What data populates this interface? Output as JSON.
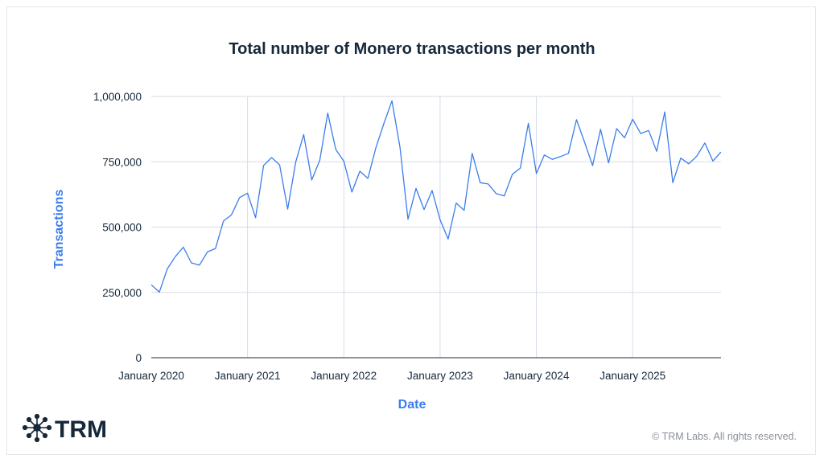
{
  "chart_data": {
    "type": "line",
    "title": "Total number of Monero transactions per month",
    "xlabel": "Date",
    "ylabel": "Transactions",
    "ylim": [
      0,
      1000000
    ],
    "yticks": [
      0,
      250000,
      500000,
      750000,
      1000000
    ],
    "ytick_labels": [
      "0",
      "250,000",
      "500,000",
      "750,000",
      "1,000,000"
    ],
    "xtick_labels": [
      "January 2020",
      "January 2021",
      "January 2022",
      "January 2023",
      "January 2024",
      "January 2025"
    ],
    "x_start": "2020-01",
    "x_end": "2025-12",
    "grid": true,
    "line_color": "#3b7ded",
    "series": [
      {
        "values": [
          279000,
          251000,
          340000,
          387000,
          423000,
          363000,
          354000,
          405000,
          418000,
          523000,
          547000,
          613000,
          630000,
          536000,
          736000,
          766000,
          738000,
          569000,
          749000,
          854000,
          680000,
          756000,
          936000,
          797000,
          752000,
          634000,
          714000,
          686000,
          805000,
          897000,
          983000,
          805000,
          530000,
          648000,
          567000,
          640000,
          528000,
          454000,
          592000,
          564000,
          782000,
          670000,
          665000,
          628000,
          619000,
          702000,
          726000,
          897000,
          705000,
          776000,
          759000,
          770000,
          782000,
          911000,
          826000,
          735000,
          874000,
          746000,
          877000,
          842000,
          913000,
          858000,
          870000,
          790000,
          941000,
          670000,
          764000,
          742000,
          772000,
          822000,
          753000,
          787000
        ]
      }
    ]
  },
  "brand": {
    "logo_text": "TRM",
    "copyright": "© TRM Labs. All rights reserved."
  }
}
